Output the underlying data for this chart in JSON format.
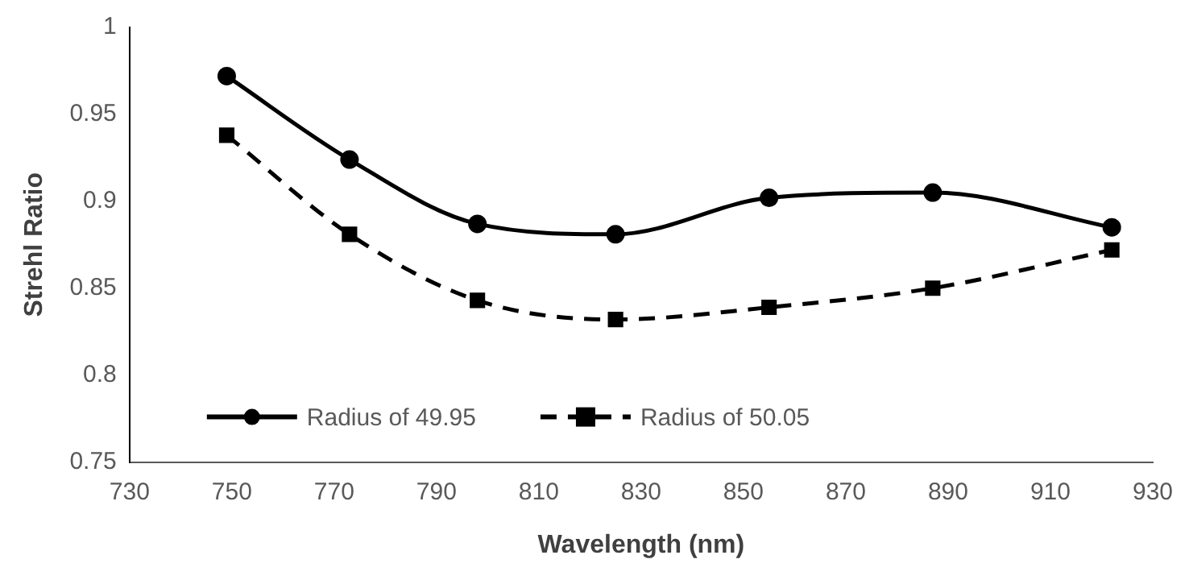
{
  "chart_data": {
    "type": "line",
    "xlabel": "Wavelength (nm)",
    "ylabel": "Strehl Ratio",
    "x": [
      749,
      773,
      798,
      825,
      855,
      887,
      922
    ],
    "series": [
      {
        "name": "Radius of 49.95",
        "color": "#000000",
        "marker": "circle",
        "line_style": "solid",
        "values": [
          0.972,
          0.924,
          0.887,
          0.881,
          0.902,
          0.905,
          0.885
        ]
      },
      {
        "name": "Radius of 50.05",
        "color": "#000000",
        "marker": "square",
        "line_style": "dashed",
        "values": [
          0.938,
          0.881,
          0.843,
          0.832,
          0.839,
          0.85,
          0.872
        ]
      }
    ],
    "xlim": [
      730,
      930
    ],
    "xticks": [
      730,
      750,
      770,
      790,
      810,
      830,
      850,
      870,
      890,
      910,
      930
    ],
    "ylim": [
      0.75,
      1
    ],
    "yticks": [
      0.75,
      0.8,
      0.85,
      0.9,
      0.95,
      1
    ],
    "grid": false,
    "legend": "bottom left"
  }
}
